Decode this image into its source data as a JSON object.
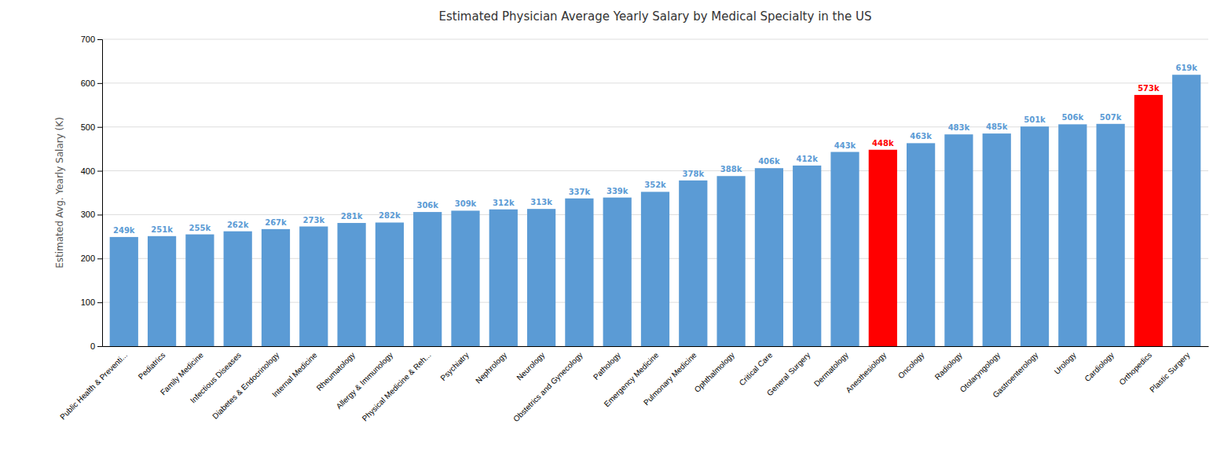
{
  "chart_data": {
    "type": "bar",
    "title": "Estimated Physician Average Yearly Salary by Medical Specialty in the US",
    "ylabel": "Estimated Avg. Yearly Salary (K)",
    "categories": [
      "Public Health & Preventi...",
      "Pediatrics",
      "Family Medicine",
      "Infectious Diseases",
      "Diabetes & Endocrinology",
      "Internal Medicine",
      "Rheumatology",
      "Allergy & Immunology",
      "Physical Medicine & Reh...",
      "Psychiatry",
      "Nephrology",
      "Neurology",
      "Obstetrics and Gynecology",
      "Pathology",
      "Emergency Medicine",
      "Pulmonary Medicine",
      "Ophthalmology",
      "Critical Care",
      "General Surgery",
      "Dermatology",
      "Anesthesiology",
      "Oncology",
      "Radiology",
      "Otolaryngology",
      "Gastroenterology",
      "Urology",
      "Cardiology",
      "Orthopedics",
      "Plastic Surgery"
    ],
    "values": [
      249,
      251,
      255,
      262,
      267,
      273,
      281,
      282,
      306,
      309,
      312,
      313,
      337,
      339,
      352,
      378,
      388,
      406,
      412,
      443,
      448,
      463,
      483,
      485,
      501,
      506,
      507,
      573,
      619
    ],
    "value_labels": [
      "249k",
      "251k",
      "255k",
      "262k",
      "267k",
      "273k",
      "281k",
      "282k",
      "306k",
      "309k",
      "312k",
      "313k",
      "337k",
      "339k",
      "352k",
      "378k",
      "388k",
      "406k",
      "412k",
      "443k",
      "448k",
      "463k",
      "483k",
      "485k",
      "501k",
      "506k",
      "507k",
      "573k",
      "619k"
    ],
    "colors": [
      "#5B9BD5",
      "#5B9BD5",
      "#5B9BD5",
      "#5B9BD5",
      "#5B9BD5",
      "#5B9BD5",
      "#5B9BD5",
      "#5B9BD5",
      "#5B9BD5",
      "#5B9BD5",
      "#5B9BD5",
      "#5B9BD5",
      "#5B9BD5",
      "#5B9BD5",
      "#5B9BD5",
      "#5B9BD5",
      "#5B9BD5",
      "#5B9BD5",
      "#5B9BD5",
      "#5B9BD5",
      "#FF0000",
      "#5B9BD5",
      "#5B9BD5",
      "#5B9BD5",
      "#5B9BD5",
      "#5B9BD5",
      "#5B9BD5",
      "#FF0000",
      "#5B9BD5"
    ],
    "ylim": [
      0,
      700
    ],
    "yticks": [
      0,
      100,
      200,
      300,
      400,
      500,
      600,
      700
    ],
    "grid": true,
    "data_labels": true
  }
}
